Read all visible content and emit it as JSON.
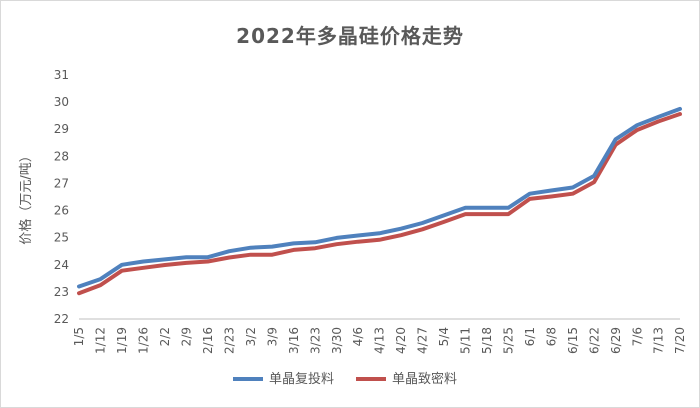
{
  "chart_data": {
    "type": "line",
    "title": "2022年多晶硅价格走势",
    "ylabel": "价格（万元/吨）",
    "xlabel": "",
    "ylim": [
      22,
      31
    ],
    "yticks": [
      22,
      23,
      24,
      25,
      26,
      27,
      28,
      29,
      30,
      31
    ],
    "grid": false,
    "legend_position": "bottom",
    "categories": [
      "1/5",
      "1/12",
      "1/19",
      "1/26",
      "2/2",
      "2/9",
      "2/16",
      "2/23",
      "3/2",
      "3/9",
      "3/16",
      "3/23",
      "3/30",
      "4/6",
      "4/13",
      "4/20",
      "4/27",
      "5/4",
      "5/11",
      "5/18",
      "5/25",
      "6/1",
      "6/8",
      "6/15",
      "6/22",
      "6/29",
      "7/6",
      "7/13",
      "7/20"
    ],
    "series": [
      {
        "name": "单晶复投料",
        "color": "#4f81bd",
        "values": [
          23.2,
          23.47,
          24.0,
          24.12,
          24.2,
          24.28,
          24.28,
          24.5,
          24.63,
          24.67,
          24.79,
          24.83,
          24.99,
          25.08,
          25.16,
          25.33,
          25.54,
          25.82,
          26.1,
          26.1,
          26.1,
          26.62,
          26.74,
          26.85,
          27.28,
          28.63,
          29.15,
          29.46,
          29.75
        ]
      },
      {
        "name": "单晶致密料",
        "color": "#c0504d",
        "values": [
          22.95,
          23.25,
          23.78,
          23.89,
          23.99,
          24.07,
          24.12,
          24.27,
          24.37,
          24.37,
          24.55,
          24.61,
          24.76,
          24.85,
          24.92,
          25.09,
          25.31,
          25.58,
          25.87,
          25.87,
          25.87,
          26.43,
          26.52,
          26.62,
          27.05,
          28.43,
          28.97,
          29.29,
          29.56
        ]
      }
    ]
  }
}
